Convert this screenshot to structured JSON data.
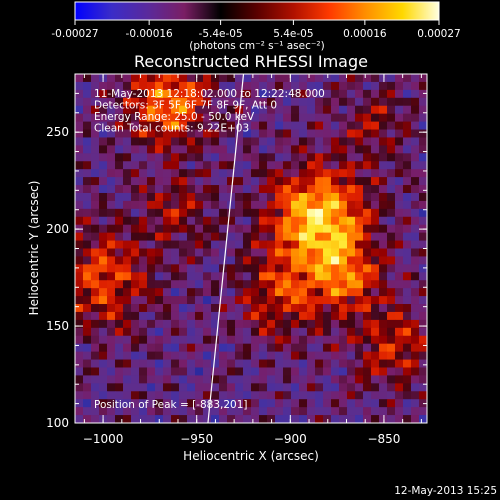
{
  "colorbar": {
    "tick_labels": [
      "-0.00027",
      "-0.00016",
      "-5.4e-05",
      "5.4e-05",
      "0.00016",
      "0.00027"
    ],
    "tick_values": [
      -0.00027,
      -0.00016,
      -5.4e-05,
      5.4e-05,
      0.00016,
      0.00027
    ],
    "range": [
      -0.00027,
      0.00027
    ],
    "units_label": "(photons cm⁻² s⁻¹ asec⁻²)",
    "colors": [
      "#0000ff",
      "#3a2cc8",
      "#5a2a9c",
      "#7a1e64",
      "#000000",
      "#5a0000",
      "#b01000",
      "#ff3a00",
      "#ff9000",
      "#ffd800",
      "#ffffe0"
    ]
  },
  "chart_data": {
    "type": "heatmap",
    "title": "Reconstructed RHESSI Image",
    "xlabel": "Heliocentric X (arcsec)",
    "ylabel": "Heliocentric Y (arcsec)",
    "xlim": [
      -1015,
      -827
    ],
    "ylim": [
      100,
      280
    ],
    "x_tick_labels": [
      "−1000",
      "−950",
      "−900",
      "−850"
    ],
    "x_ticks": [
      -1000,
      -950,
      -900,
      -850
    ],
    "y_tick_labels": [
      "100",
      "150",
      "200",
      "250"
    ],
    "y_ticks": [
      100,
      150,
      200,
      250
    ],
    "annotations": [
      "11-May-2013 12:18:02.000 to 12:22:48.000",
      "Detectors: 3F 5F 6F 7F 8F 9F, Att 0",
      "Energy Range: 25.0 - 50.0 keV",
      "Clean     Total counts: 9.22E+03"
    ],
    "peak_label": "Position of Peak = [-883,201]",
    "peak": [
      -883,
      201
    ],
    "limb_line": [
      [
        -944,
        100
      ],
      [
        -925,
        280
      ]
    ]
  },
  "timestamp": "12-May-2013 15:25"
}
